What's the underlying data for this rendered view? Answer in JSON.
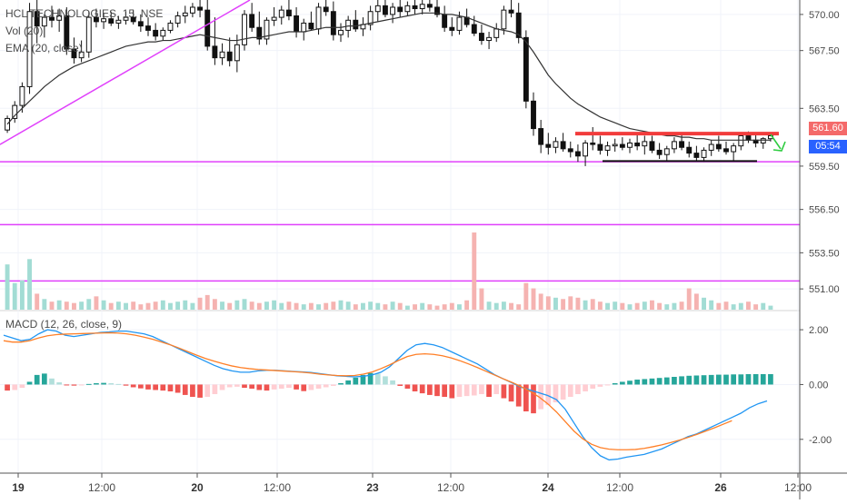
{
  "legend": {
    "symbol": "HCL TECHNOLOGIES, 15, NSE",
    "volume": "Vol (20)",
    "ema": "EMA (20, close)",
    "macd": "MACD (12, 26, close, 9)"
  },
  "price_tags": {
    "last_price": "561.60",
    "countdown": "05:54"
  },
  "colors": {
    "up": "#26a69a",
    "down": "#ef5350",
    "ema": "#333333",
    "trendline": "#e040fb",
    "resistance": "#f23c3c",
    "support": "#111111",
    "arrow": "#2ecc40",
    "macd": "#2196f3",
    "signal": "#ff7f27",
    "price_tag": "#f46a6a",
    "countdown_tag": "#2962ff"
  },
  "chart_data": [
    {
      "type": "candlestick",
      "name": "price",
      "y_ticks": [
        "570.00",
        "567.50",
        "563.50",
        "559.50",
        "556.50",
        "553.50",
        "551.00"
      ],
      "ylim": [
        549.5,
        571.0
      ],
      "x_ticks": [
        "19",
        "12:00",
        "20",
        "12:00",
        "23",
        "12:00",
        "24",
        "12:00",
        "26",
        "12:00"
      ],
      "ohlc": [
        [
          562.0,
          563.0,
          561.8,
          562.8
        ],
        [
          562.8,
          564.0,
          562.5,
          563.7
        ],
        [
          563.7,
          565.3,
          563.2,
          565.0
        ],
        [
          565.0,
          570.8,
          564.5,
          570.2
        ],
        [
          570.2,
          571.0,
          568.0,
          569.2
        ],
        [
          569.2,
          570.0,
          568.4,
          569.8
        ],
        [
          569.8,
          570.6,
          569.1,
          569.6
        ],
        [
          569.6,
          570.4,
          568.8,
          569.9
        ],
        [
          569.9,
          570.5,
          567.2,
          567.6
        ],
        [
          567.6,
          568.4,
          566.6,
          567.0
        ],
        [
          567.0,
          568.2,
          566.7,
          567.4
        ],
        [
          567.4,
          570.2,
          567.0,
          569.8
        ],
        [
          569.8,
          570.4,
          569.1,
          569.5
        ],
        [
          569.5,
          570.1,
          569.0,
          569.7
        ],
        [
          569.7,
          570.2,
          569.2,
          569.4
        ],
        [
          569.4,
          569.9,
          569.0,
          569.6
        ],
        [
          569.6,
          570.2,
          569.3,
          569.8
        ],
        [
          569.8,
          570.3,
          569.3,
          569.5
        ],
        [
          569.5,
          570.0,
          568.8,
          569.2
        ],
        [
          569.2,
          569.8,
          568.5,
          568.9
        ],
        [
          568.9,
          569.4,
          568.2,
          568.5
        ],
        [
          568.5,
          569.1,
          568.2,
          568.9
        ],
        [
          568.9,
          569.6,
          568.7,
          569.4
        ],
        [
          569.4,
          570.2,
          569.1,
          569.9
        ],
        [
          569.9,
          570.6,
          569.4,
          570.1
        ],
        [
          570.1,
          570.8,
          569.8,
          570.5
        ],
        [
          570.5,
          571.0,
          569.8,
          570.3
        ],
        [
          570.3,
          571.0,
          567.5,
          567.8
        ],
        [
          567.8,
          569.8,
          566.5,
          567.0
        ],
        [
          567.0,
          568.0,
          566.5,
          567.4
        ],
        [
          567.4,
          568.4,
          566.4,
          566.8
        ],
        [
          566.8,
          568.6,
          566.0,
          567.9
        ],
        [
          567.9,
          570.3,
          567.5,
          570.0
        ],
        [
          570.0,
          570.8,
          568.8,
          569.1
        ],
        [
          569.1,
          570.2,
          567.9,
          568.3
        ],
        [
          568.3,
          569.8,
          567.9,
          569.6
        ],
        [
          569.6,
          570.5,
          569.2,
          569.8
        ],
        [
          569.8,
          570.6,
          569.3,
          570.3
        ],
        [
          570.3,
          571.0,
          569.6,
          569.9
        ],
        [
          569.9,
          570.5,
          568.4,
          568.8
        ],
        [
          568.8,
          569.7,
          568.2,
          569.4
        ],
        [
          569.4,
          570.2,
          568.9,
          569.0
        ],
        [
          569.0,
          570.8,
          568.6,
          570.5
        ],
        [
          570.5,
          571.0,
          569.9,
          570.2
        ],
        [
          570.2,
          570.9,
          568.2,
          568.6
        ],
        [
          568.6,
          569.4,
          568.1,
          568.9
        ],
        [
          568.9,
          569.9,
          568.4,
          569.6
        ],
        [
          569.6,
          570.3,
          568.8,
          569.0
        ],
        [
          569.0,
          569.8,
          568.5,
          569.3
        ],
        [
          569.3,
          570.6,
          568.9,
          570.2
        ],
        [
          570.2,
          571.0,
          569.5,
          570.6
        ],
        [
          570.6,
          571.0,
          569.8,
          570.0
        ],
        [
          570.0,
          570.8,
          569.4,
          570.5
        ],
        [
          570.5,
          571.0,
          569.8,
          570.2
        ],
        [
          570.2,
          570.9,
          569.9,
          570.6
        ],
        [
          570.6,
          571.0,
          570.0,
          570.4
        ],
        [
          570.4,
          571.0,
          570.0,
          570.7
        ],
        [
          570.7,
          571.0,
          570.2,
          570.5
        ],
        [
          570.5,
          571.0,
          569.8,
          570.0
        ],
        [
          570.0,
          570.6,
          568.8,
          569.1
        ],
        [
          569.1,
          569.8,
          568.5,
          568.9
        ],
        [
          568.9,
          570.2,
          568.6,
          569.8
        ],
        [
          569.8,
          570.4,
          569.1,
          569.3
        ],
        [
          569.3,
          569.9,
          568.5,
          568.7
        ],
        [
          568.7,
          569.3,
          567.9,
          568.2
        ],
        [
          568.2,
          568.8,
          567.6,
          568.4
        ],
        [
          568.4,
          569.4,
          568.1,
          569.0
        ],
        [
          569.0,
          570.6,
          568.6,
          570.3
        ],
        [
          570.3,
          571.0,
          569.8,
          570.1
        ],
        [
          570.1,
          570.8,
          568.0,
          568.4
        ],
        [
          568.4,
          568.9,
          563.5,
          564.0
        ],
        [
          564.0,
          564.6,
          561.6,
          562.1
        ],
        [
          562.1,
          562.7,
          560.4,
          561.0
        ],
        [
          561.0,
          561.8,
          560.3,
          560.8
        ],
        [
          560.8,
          561.5,
          560.4,
          561.2
        ],
        [
          561.2,
          561.8,
          560.5,
          560.7
        ],
        [
          560.7,
          561.2,
          560.1,
          560.5
        ],
        [
          560.5,
          561.0,
          559.8,
          560.2
        ],
        [
          560.2,
          561.3,
          559.5,
          561.1
        ],
        [
          561.1,
          562.2,
          560.6,
          561.0
        ],
        [
          561.0,
          561.6,
          560.3,
          560.6
        ],
        [
          560.6,
          561.2,
          560.2,
          560.9
        ],
        [
          560.9,
          561.4,
          560.5,
          561.0
        ],
        [
          561.0,
          561.5,
          560.6,
          560.8
        ],
        [
          560.8,
          561.4,
          560.4,
          561.1
        ],
        [
          561.1,
          561.7,
          560.6,
          560.9
        ],
        [
          560.9,
          561.6,
          560.3,
          561.2
        ],
        [
          561.2,
          561.6,
          560.4,
          560.6
        ],
        [
          560.6,
          561.1,
          560.0,
          560.3
        ],
        [
          560.3,
          560.9,
          559.9,
          560.7
        ],
        [
          560.7,
          561.5,
          560.4,
          561.2
        ],
        [
          561.2,
          561.7,
          560.6,
          560.8
        ],
        [
          560.8,
          561.2,
          560.1,
          560.4
        ],
        [
          560.4,
          560.9,
          559.9,
          560.1
        ],
        [
          560.1,
          560.8,
          559.8,
          560.6
        ],
        [
          560.6,
          561.3,
          560.2,
          561.0
        ],
        [
          561.0,
          561.6,
          560.5,
          560.7
        ],
        [
          560.7,
          561.2,
          560.3,
          560.5
        ],
        [
          560.5,
          561.1,
          559.9,
          560.9
        ],
        [
          560.9,
          561.8,
          560.6,
          561.6
        ],
        [
          561.6,
          561.9,
          561.1,
          561.3
        ],
        [
          561.3,
          561.7,
          560.8,
          561.1
        ],
        [
          561.1,
          561.5,
          560.7,
          561.4
        ],
        [
          561.4,
          561.7,
          561.2,
          561.6
        ]
      ],
      "ema": [
        562.4,
        563.0,
        563.5,
        564.0,
        564.5,
        565.0,
        565.4,
        565.8,
        566.1,
        566.4,
        566.6,
        566.8,
        567.0,
        567.2,
        567.4,
        567.6,
        567.8,
        567.9,
        568.0,
        568.1,
        568.1,
        568.2,
        568.2,
        568.3,
        568.4,
        568.5,
        568.6,
        568.5,
        568.4,
        568.3,
        568.2,
        568.2,
        568.3,
        568.4,
        568.4,
        568.5,
        568.6,
        568.7,
        568.8,
        568.8,
        568.8,
        568.9,
        569.0,
        569.1,
        569.1,
        569.1,
        569.2,
        569.2,
        569.3,
        569.4,
        569.5,
        569.6,
        569.7,
        569.8,
        569.9,
        570.0,
        570.1,
        570.1,
        570.1,
        570.0,
        570.0,
        569.9,
        569.8,
        569.6,
        569.4,
        569.2,
        569.0,
        568.9,
        568.8,
        568.6,
        568.1,
        567.4,
        566.6,
        565.8,
        565.2,
        564.7,
        564.2,
        563.8,
        563.5,
        563.2,
        562.9,
        562.7,
        562.5,
        562.3,
        562.1,
        562.0,
        561.9,
        561.8,
        561.7,
        561.6,
        561.6,
        561.5,
        561.5,
        561.4,
        561.4,
        561.3,
        561.3,
        561.3,
        561.3,
        561.3,
        561.3,
        561.3,
        561.3,
        561.3
      ],
      "volume": [
        34,
        20,
        22,
        38,
        12,
        8,
        6,
        7,
        6,
        5,
        6,
        8,
        10,
        7,
        5,
        6,
        5,
        6,
        4,
        5,
        6,
        7,
        5,
        6,
        7,
        5,
        9,
        11,
        8,
        6,
        5,
        7,
        8,
        6,
        5,
        6,
        7,
        5,
        6,
        5,
        4,
        5,
        4,
        5,
        6,
        7,
        6,
        4,
        5,
        6,
        5,
        4,
        6,
        5,
        3,
        4,
        5,
        4,
        3,
        4,
        5,
        4,
        7,
        58,
        16,
        6,
        5,
        6,
        5,
        4,
        20,
        16,
        12,
        10,
        9,
        8,
        10,
        9,
        7,
        8,
        6,
        5,
        6,
        5,
        4,
        5,
        6,
        7,
        5,
        4,
        5,
        6,
        16,
        12,
        9,
        7,
        5,
        6,
        4,
        5,
        6,
        4,
        5,
        3
      ],
      "resistance": 561.75,
      "support": 559.85,
      "levels": [
        559.8,
        555.45,
        551.55
      ]
    },
    {
      "type": "line",
      "name": "MACD (12, 26, close, 9)",
      "y_ticks": [
        "2.00",
        "0.00",
        "-2.00"
      ],
      "ylim": [
        -3.2,
        2.6
      ],
      "macd": [
        1.8,
        1.7,
        1.6,
        1.65,
        1.85,
        2.0,
        1.95,
        1.8,
        1.75,
        1.8,
        1.85,
        1.9,
        1.92,
        1.95,
        1.95,
        1.9,
        1.85,
        1.75,
        1.6,
        1.45,
        1.3,
        1.15,
        1.0,
        0.85,
        0.7,
        0.58,
        0.5,
        0.45,
        0.45,
        0.5,
        0.52,
        0.52,
        0.5,
        0.48,
        0.46,
        0.44,
        0.4,
        0.36,
        0.32,
        0.3,
        0.28,
        0.3,
        0.35,
        0.45,
        0.65,
        0.95,
        1.25,
        1.45,
        1.5,
        1.45,
        1.35,
        1.2,
        1.05,
        0.9,
        0.75,
        0.55,
        0.35,
        0.2,
        0.05,
        -0.1,
        -0.2,
        -0.3,
        -0.4,
        -0.55,
        -0.9,
        -1.4,
        -1.9,
        -2.3,
        -2.6,
        -2.75,
        -2.72,
        -2.65,
        -2.6,
        -2.55,
        -2.45,
        -2.35,
        -2.2,
        -2.05,
        -1.9,
        -1.8,
        -1.65,
        -1.5,
        -1.35,
        -1.2,
        -1.05,
        -0.85,
        -0.7,
        -0.6
      ],
      "signal": [
        1.6,
        1.55,
        1.55,
        1.6,
        1.7,
        1.78,
        1.82,
        1.84,
        1.85,
        1.86,
        1.87,
        1.88,
        1.89,
        1.88,
        1.85,
        1.8,
        1.73,
        1.65,
        1.55,
        1.45,
        1.33,
        1.2,
        1.07,
        0.95,
        0.85,
        0.76,
        0.68,
        0.62,
        0.58,
        0.55,
        0.53,
        0.51,
        0.49,
        0.47,
        0.45,
        0.42,
        0.38,
        0.35,
        0.33,
        0.32,
        0.33,
        0.38,
        0.46,
        0.58,
        0.72,
        0.88,
        1.02,
        1.1,
        1.12,
        1.1,
        1.05,
        0.97,
        0.87,
        0.75,
        0.62,
        0.48,
        0.34,
        0.2,
        0.07,
        -0.08,
        -0.25,
        -0.45,
        -0.7,
        -1.0,
        -1.35,
        -1.7,
        -1.98,
        -2.18,
        -2.3,
        -2.36,
        -2.38,
        -2.38,
        -2.37,
        -2.33,
        -2.27,
        -2.2,
        -2.12,
        -2.03,
        -1.93,
        -1.82,
        -1.7,
        -1.58,
        -1.45,
        -1.32
      ],
      "histogram": [
        -0.22,
        -0.2,
        -0.12,
        0.1,
        0.35,
        0.4,
        0.22,
        0.08,
        -0.02,
        -0.04,
        -0.03,
        0.02,
        0.05,
        0.06,
        0.05,
        0.02,
        -0.04,
        -0.1,
        -0.14,
        -0.18,
        -0.2,
        -0.22,
        -0.25,
        -0.3,
        -0.38,
        -0.45,
        -0.48,
        -0.45,
        -0.35,
        -0.2,
        -0.1,
        -0.08,
        -0.12,
        -0.15,
        -0.2,
        -0.22,
        -0.18,
        -0.15,
        -0.12,
        -0.18,
        -0.24,
        -0.2,
        -0.15,
        -0.1,
        -0.05,
        0.05,
        0.15,
        0.25,
        0.35,
        0.42,
        0.4,
        0.3,
        0.15,
        -0.05,
        -0.15,
        -0.25,
        -0.32,
        -0.38,
        -0.42,
        -0.45,
        -0.5,
        -0.45,
        -0.42,
        -0.4,
        -0.35,
        -0.45,
        -0.35,
        -0.5,
        -0.62,
        -0.8,
        -0.98,
        -1.05,
        -0.9,
        -0.75,
        -0.65,
        -0.55,
        -0.45,
        -0.35,
        -0.25,
        -0.15,
        -0.08,
        -0.02,
        0.05,
        0.1,
        0.14,
        0.18,
        0.2,
        0.22,
        0.24,
        0.26,
        0.28,
        0.3,
        0.32,
        0.33,
        0.34,
        0.35,
        0.36,
        0.36,
        0.37,
        0.37,
        0.38,
        0.38,
        0.38,
        0.38
      ]
    }
  ]
}
